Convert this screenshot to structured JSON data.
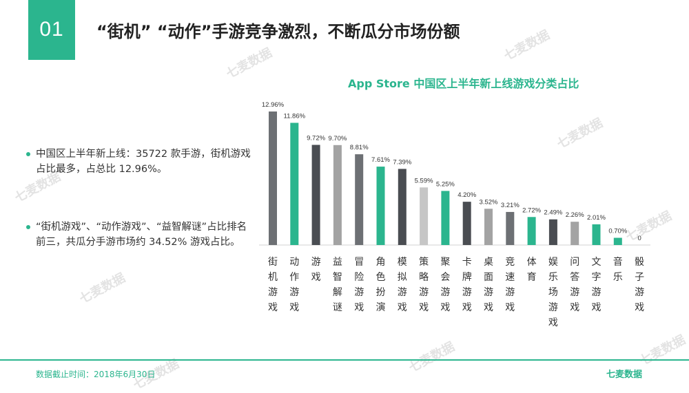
{
  "slide": {
    "number": "01",
    "title": "“街机” “动作”手游竞争激烈，不断瓜分市场份额"
  },
  "bullets": [
    "中国区上半年新上线：35722 款手游，街机游戏占比最多，占总比 12.96%。",
    "“街机游戏”、“动作游戏”、“益智解谜”占比排名前三，共瓜分手游市场约 34.52% 游戏占比。"
  ],
  "watermark_text": "七麦数据",
  "footer": {
    "note": "数据截止时间：2018年6月30日",
    "logo": "七麦数据"
  },
  "colors": {
    "accent": "#2bb58e",
    "dark": "#4a4d52",
    "gray": "#a3a3a3"
  },
  "chart_data": {
    "type": "bar",
    "title": "App Store 中国区上半年新上线游戏分类占比",
    "categories": [
      "街机游戏",
      "动作游戏",
      "游戏",
      "益智解谜",
      "冒险游戏",
      "角色扮演",
      "模拟游戏",
      "策略游戏",
      "聚会游戏",
      "卡牌游戏",
      "桌面游戏",
      "竞速游戏",
      "体育",
      "娱乐场游戏",
      "问答游戏",
      "文字游戏",
      "音乐",
      "骰子游戏"
    ],
    "values": [
      12.96,
      11.86,
      9.72,
      9.7,
      8.81,
      7.61,
      7.39,
      5.59,
      5.25,
      4.2,
      3.52,
      3.21,
      2.72,
      2.49,
      2.26,
      2.01,
      0.7,
      0
    ],
    "labels": [
      "12.96%",
      "11.86%",
      "9.72%",
      "9.70%",
      "8.81%",
      "7.61%",
      "7.39%",
      "5.59%",
      "5.25%",
      "4.20%",
      "3.52%",
      "3.21%",
      "2.72%",
      "2.49%",
      "2.26%",
      "2.01%",
      "0.70%",
      "0"
    ],
    "bar_colors": [
      "#6d7074",
      "#2bb58e",
      "#4a4d52",
      "#a3a3a3",
      "#6d7074",
      "#2bb58e",
      "#4a4d52",
      "#c6c6c6",
      "#2bb58e",
      "#4a4d52",
      "#a3a3a3",
      "#6d7074",
      "#2bb58e",
      "#4a4d52",
      "#a3a3a3",
      "#2bb58e",
      "#2bb58e",
      "#a3a3a3"
    ],
    "ylim": [
      0,
      13
    ],
    "grid": false,
    "legend": "none"
  }
}
